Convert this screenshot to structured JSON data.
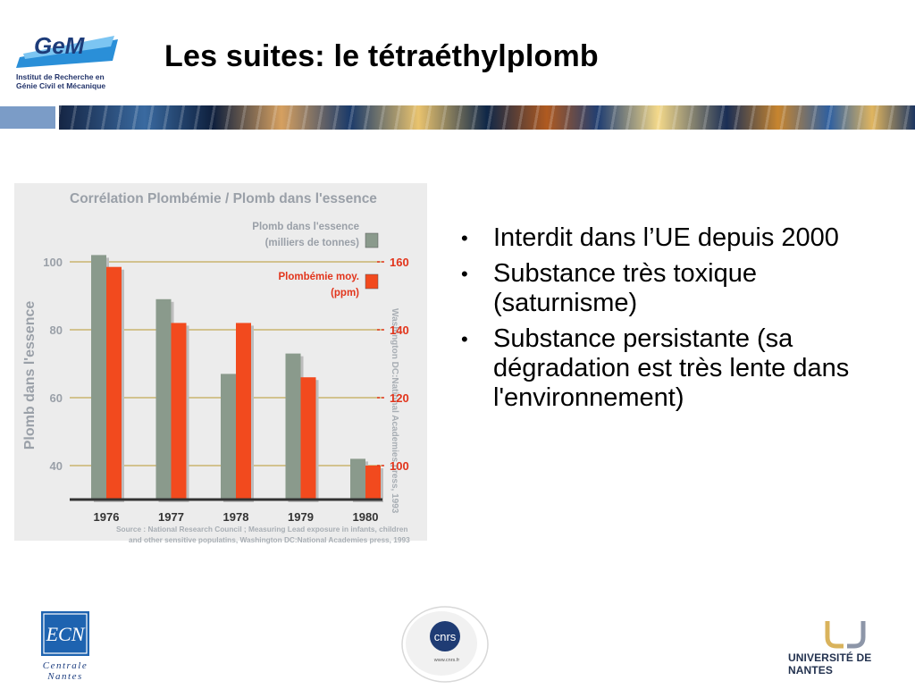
{
  "header": {
    "title": "Les suites: le tétraéthylplomb",
    "logo_gem": {
      "name": "GeM",
      "subtitle_lines": [
        "Institut de Recherche en",
        "Génie Civil et Mécanique"
      ]
    }
  },
  "bullets": [
    "Interdit dans l’UE depuis 2000",
    "Substance très toxique (saturnisme)",
    "Substance persistante (sa dégradation est très lente dans l'environnement)"
  ],
  "footer": {
    "ecn_logo": {
      "mark": "ECN",
      "lines": [
        "Centrale",
        "Nantes"
      ]
    },
    "cnrs_logo": {
      "mark": "cnrs",
      "url_text": "www.cnrs.fr"
    },
    "un_logo": {
      "text": "UNIVERSITÉ DE NANTES"
    }
  },
  "colors": {
    "gray_bar": "#8a9a8c",
    "red_bar": "#f24a1e",
    "chart_bg": "#e8e8e8",
    "grid_line": "#c9b36e",
    "axis_text": "#9aa0a8",
    "right_axis_text": "#e2351c",
    "band": "#1c3560"
  },
  "chart_data": {
    "type": "bar",
    "title": "Corrélation Plombémie / Plomb dans l'essence",
    "ylabel": "Plomb dans l'essence",
    "categories": [
      "1976",
      "1977",
      "1978",
      "1979",
      "1980"
    ],
    "ylim": [
      30,
      105
    ],
    "yticks": [
      40,
      60,
      80,
      100
    ],
    "y2lim": [
      90,
      165
    ],
    "y2ticks": [
      100,
      120,
      140,
      160
    ],
    "series": [
      {
        "name": "Plomb dans l'essence",
        "unit": "(milliers de tonnes)",
        "axis": "left",
        "values": [
          102,
          89,
          67,
          73,
          42
        ]
      },
      {
        "name": "Plombémie moy.",
        "unit": "(ppm)",
        "axis": "right",
        "values": [
          158.5,
          142,
          142,
          126,
          100
        ]
      }
    ],
    "side_label": "Washington DC:National Academies press, 1993",
    "source_lines": [
      "Source : National Research Council ; Measuring Lead exposure in infants, children",
      "and other sensitive populatins, Washington DC:National Academies press, 1993"
    ],
    "grid": true
  }
}
